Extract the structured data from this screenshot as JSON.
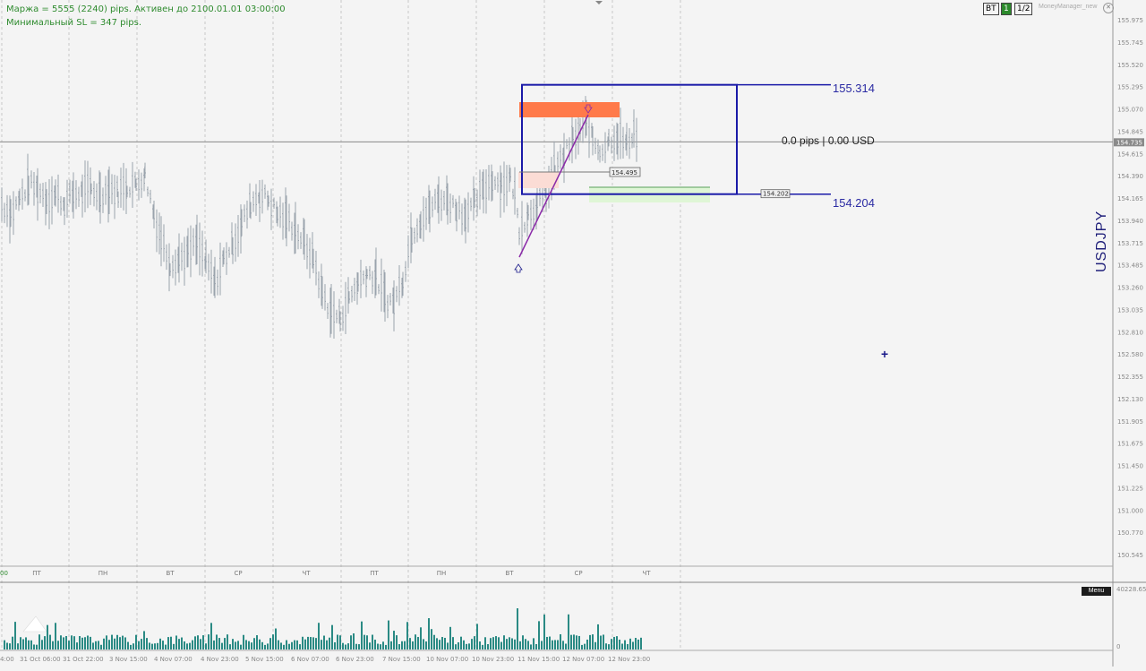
{
  "info": {
    "line1": "Маржа = 5555 (2240) pips. Активен до 2100.01.01 03:00:00",
    "line2": "Минимальный SL = 347 pips."
  },
  "toolbar": {
    "bt_label": "BT",
    "one_label": "1",
    "page_label": "1/2",
    "indicator_name": "MoneyManager_new",
    "close_icon": "close-icon"
  },
  "symbol": "USDJPY",
  "levels": {
    "upper": "155.314",
    "lower": "154.204",
    "mid_box": "154.495",
    "lower_box": "154.202",
    "pips_text": "0.0 pips | 0.00 USD",
    "current_price": "154.735"
  },
  "price_axis": [
    "155.975",
    "155.745",
    "155.520",
    "155.295",
    "155.070",
    "154.845",
    "154.615",
    "154.390",
    "154.165",
    "153.940",
    "153.715",
    "153.485",
    "153.260",
    "153.035",
    "152.810",
    "152.580",
    "152.355",
    "152.130",
    "151.905",
    "151.675",
    "151.450",
    "151.225",
    "151.000",
    "150.770",
    "150.545"
  ],
  "weekday_labels": [
    "ПТ",
    "ПН",
    "ВТ",
    "СР",
    "ЧТ",
    "ПТ",
    "ПН",
    "ВТ",
    "СР",
    "ЧТ"
  ],
  "time_labels": [
    "4:00",
    "31 Oct 06:00",
    "31 Oct 22:00",
    "3 Nov 15:00",
    "4 Nov 07:00",
    "4 Nov 23:00",
    "5 Nov 15:00",
    "6 Nov 07:00",
    "6 Nov 23:00",
    "7 Nov 15:00",
    "10 Nov 07:00",
    "10 Nov 23:00",
    "11 Nov 15:00",
    "12 Nov 07:00",
    "12 Nov 23:00"
  ],
  "left_edge_label": "00",
  "volume_axis": {
    "max": "40228.65",
    "min": "0"
  },
  "menu_label": "Menu",
  "colors": {
    "candles": "#9aa3ad",
    "box": "#1a1aa8",
    "trend": "#8b2aa8",
    "red_zone": "#ff7a4a",
    "volume": "#2a8a84",
    "info_text": "#2e8b2e"
  },
  "chart_data": {
    "type": "bar",
    "series_name": "USDJPY",
    "current_price": 154.735,
    "levels": [
      155.314,
      154.204,
      154.495
    ],
    "ylim": [
      150.545,
      155.975
    ]
  }
}
